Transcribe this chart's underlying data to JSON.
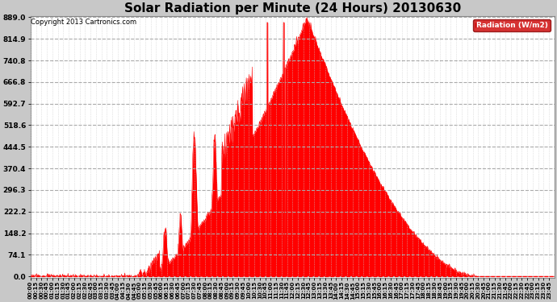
{
  "title": "Solar Radiation per Minute (24 Hours) 20130630",
  "copyright": "Copyright 2013 Cartronics.com",
  "ylabel": "Radiation (W/m2)",
  "yticks": [
    0.0,
    74.1,
    148.2,
    222.2,
    296.3,
    370.4,
    444.5,
    518.6,
    592.7,
    666.8,
    740.8,
    814.9,
    889.0
  ],
  "ymax": 889.0,
  "ymin": 0.0,
  "fill_color": "#ff0000",
  "line_color": "#ff0000",
  "background_color": "#c8c8c8",
  "plot_bg_color": "#ffffff",
  "grid_color_h": "#aaaaaa",
  "grid_color_v": "#cccccc",
  "dashed_line_color": "#ff0000",
  "title_fontsize": 11,
  "copyright_fontsize": 6,
  "legend_bg_color": "#cc0000",
  "legend_text_color": "#ffffff",
  "xtick_interval_minutes": 15,
  "total_minutes": 1440,
  "sun_rise": 318,
  "sun_set": 1225,
  "peak_time": 760,
  "peak_val": 889.0
}
